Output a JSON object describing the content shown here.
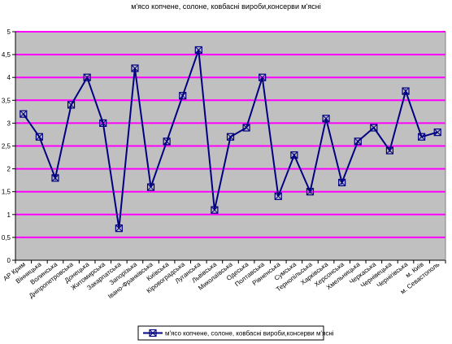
{
  "chart_data": {
    "type": "line",
    "title": "м'ясо копчене, солоне, ковбасні вироби,консерви м'ясні",
    "xlabel": "",
    "ylabel": "",
    "ylim": [
      0,
      5
    ],
    "yticks": [
      "0",
      "0,5",
      "1",
      "1,5",
      "2",
      "2,5",
      "3",
      "3,5",
      "4",
      "4,5",
      "5"
    ],
    "grid": true,
    "legend_position": "bottom",
    "categories": [
      "АР Крим",
      "Вінницька",
      "Волинська",
      "Дніпропетровська",
      "Донецька",
      "Житомирська",
      "Закарпатська",
      "Запорізька",
      "Івано-Франківська",
      "Київська",
      "Кіровоградська",
      "Луганська",
      "Львівська",
      "Миколаївська",
      "Одеська",
      "Полтавська",
      "Рівненська",
      "Сумська",
      "Тернопільська",
      "Харківська",
      "Херсонська",
      "Хмельницька",
      "Черкаська",
      "Чернівецька",
      "Чернігівська",
      "м. Київ",
      "м. Севастополь"
    ],
    "series": [
      {
        "name": "м'ясо копчене, солоне, ковбасні вироби,консерви м'ясні",
        "values": [
          3.2,
          2.7,
          1.8,
          3.4,
          4.0,
          3.0,
          0.7,
          4.2,
          1.6,
          2.6,
          3.6,
          4.6,
          1.1,
          2.7,
          2.9,
          4.0,
          1.4,
          2.3,
          1.5,
          3.1,
          1.7,
          2.6,
          2.9,
          2.4,
          3.7,
          2.7,
          2.8
        ]
      }
    ],
    "colors": {
      "plot_bg": "#c0c0c0",
      "grid": "#ff00ff",
      "line": "#000080"
    }
  }
}
